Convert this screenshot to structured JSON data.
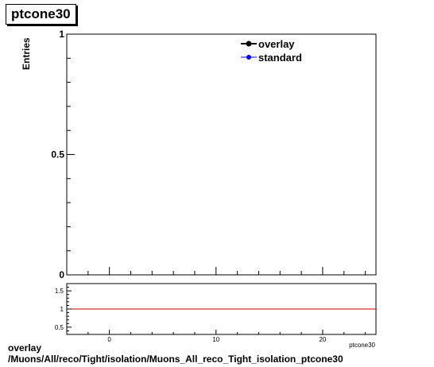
{
  "chart_data": [
    {
      "type": "line",
      "title": "ptcone30",
      "xlabel": "",
      "ylabel": "Entries",
      "xlim": [
        -4,
        25
      ],
      "ylim": [
        0,
        1
      ],
      "y_ticks": [
        0,
        0.5,
        1
      ],
      "y_tick_labels": [
        "0",
        "0.5",
        "1"
      ],
      "legend": "top-right",
      "series": [
        {
          "name": "overlay",
          "color": "#000000",
          "marker": "circle",
          "x": [],
          "y": []
        },
        {
          "name": "standard",
          "color": "#0000ff",
          "marker": "circle",
          "x": [],
          "y": []
        }
      ]
    },
    {
      "type": "line",
      "xlabel": "ptcone30",
      "xlim": [
        -4,
        25
      ],
      "ylim": [
        0.3,
        1.7
      ],
      "x_ticks": [
        0,
        10,
        20
      ],
      "x_tick_labels": [
        "0",
        "10",
        "20"
      ],
      "y_ticks": [
        0.5,
        1,
        1.5
      ],
      "y_tick_labels": [
        "0.5",
        "1",
        "1.5"
      ],
      "reference_line": {
        "y": 1,
        "color": "#cc0000"
      }
    }
  ],
  "footer": {
    "line1": "overlay",
    "line2": "/Muons/All/reco/Tight/isolation/Muons_All_reco_Tight_isolation_ptcone30"
  }
}
